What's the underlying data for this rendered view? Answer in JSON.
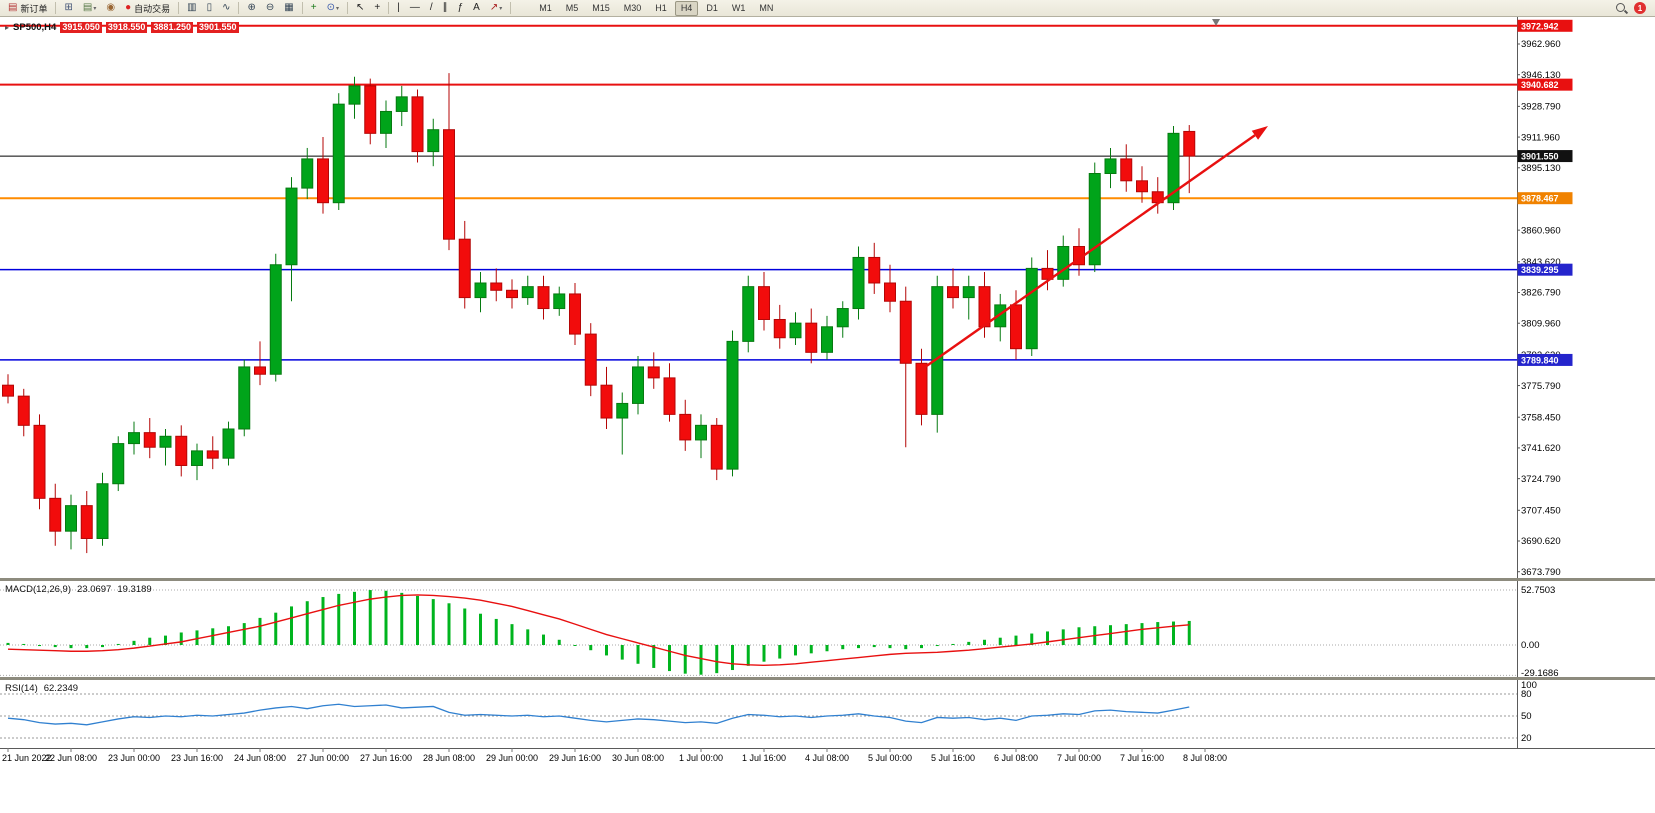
{
  "toolbar": {
    "new_order_label": "新订单",
    "new_order_icon_glyph": "▤",
    "autotrading_label": "自动交易",
    "autotrading_icon_glyph": "●",
    "notification_count": "1",
    "timeframes": [
      "M1",
      "M5",
      "M15",
      "M30",
      "H1",
      "H4",
      "D1",
      "W1",
      "MN"
    ],
    "active_timeframe": "H4",
    "icon_groups_a": [
      [
        {
          "name": "new-chart",
          "glyph": "⊞",
          "color": "#445577"
        },
        {
          "name": "profiles",
          "glyph": "▤",
          "color": "#557744",
          "dropdown": true
        },
        {
          "name": "alerts",
          "glyph": "◉",
          "color": "#996633"
        }
      ]
    ],
    "icon_groups_b": [
      [
        {
          "name": "bar-chart",
          "glyph": "▥",
          "color": "#334455"
        },
        {
          "name": "candle-chart",
          "glyph": "▯",
          "color": "#334455"
        },
        {
          "name": "line-chart",
          "glyph": "∿",
          "color": "#334455"
        }
      ],
      [
        {
          "name": "zoom-in",
          "glyph": "⊕",
          "color": "#334455"
        },
        {
          "name": "zoom-out",
          "glyph": "⊖",
          "color": "#334455"
        },
        {
          "name": "tile-windows",
          "glyph": "▦",
          "color": "#334455"
        }
      ],
      [
        {
          "name": "add-indicator",
          "glyph": "+",
          "color": "#1a7a1a"
        },
        {
          "name": "period-selector",
          "glyph": "⊙",
          "color": "#3355aa",
          "dropdown": true
        }
      ],
      [
        {
          "name": "cursor",
          "glyph": "↖",
          "color": "#222222"
        },
        {
          "name": "crosshair",
          "glyph": "+",
          "color": "#222222"
        }
      ],
      [
        {
          "name": "vertical-line",
          "glyph": "|",
          "color": "#222222"
        },
        {
          "name": "horizontal-line",
          "glyph": "—",
          "color": "#222222"
        },
        {
          "name": "trendline",
          "glyph": "/",
          "color": "#222222"
        },
        {
          "name": "channel",
          "glyph": "∥",
          "color": "#222222"
        },
        {
          "name": "fibonacci",
          "glyph": "ƒ",
          "color": "#222222"
        },
        {
          "name": "text-tool",
          "glyph": "A",
          "color": "#222222"
        },
        {
          "name": "arrows-tool",
          "glyph": "↗",
          "color": "#aa2222",
          "dropdown": true
        }
      ]
    ]
  },
  "chart": {
    "symbol_marker_glyph": "▸",
    "symbol_period": "SP500,H4",
    "open": "3915.050",
    "high": "3918.550",
    "low": "3881.250",
    "close": "3901.550",
    "shift_marker_index": 76.7,
    "hlines": [
      {
        "price": 3972.942,
        "label": "3972.942",
        "color": "#e81010",
        "badge": "#e81010",
        "width": 2
      },
      {
        "price": 3940.682,
        "label": "3940.682",
        "color": "#e81010",
        "badge": "#e81010",
        "width": 2
      },
      {
        "price": 3901.55,
        "label": "3901.550",
        "color": "#000000",
        "badge": "#111111",
        "width": 1
      },
      {
        "price": 3878.467,
        "label": "3878.467",
        "color": "#ff8c00",
        "badge": "#f08200",
        "width": 2
      },
      {
        "price": 3839.295,
        "label": "3839.295",
        "color": "#0000dd",
        "badge": "#2424cc",
        "width": 1.5
      },
      {
        "price": 3789.84,
        "label": "3789.840",
        "color": "#0000dd",
        "badge": "#2424cc",
        "width": 1.5
      }
    ],
    "trend_arrow": {
      "color": "#e81010",
      "from": {
        "index": 57.9,
        "price": 3784
      },
      "to": {
        "index": 80,
        "price": 3918
      }
    },
    "price_axis_labels": [
      "3962.960",
      "3946.130",
      "3928.790",
      "3911.960",
      "3895.130",
      "3860.960",
      "3843.620",
      "3826.790",
      "3809.960",
      "3792.620",
      "3775.790",
      "3758.450",
      "3741.620",
      "3724.790",
      "3707.450",
      "3690.620",
      "3673.790"
    ]
  },
  "macd": {
    "name": "MACD(12,26,9)",
    "value_main": "23.0697",
    "value_signal": "19.3189",
    "axis_labels": [
      "52.7503",
      "0.00",
      "-29.1686"
    ]
  },
  "rsi": {
    "name": "RSI(14)",
    "value": "62.2349",
    "axis_labels": [
      "100",
      "80",
      "50",
      "20"
    ]
  },
  "chart_data": {
    "type": "candlestick",
    "symbol": "SP500",
    "timeframe": "H4",
    "last_ohlc": {
      "open": 3915.05,
      "high": 3918.55,
      "low": 3881.25,
      "close": 3901.55
    },
    "colors": {
      "up": "#00a41a",
      "up_border": "#067a10",
      "down": "#f20c0c",
      "down_border": "#b40606",
      "macd_bar": "#00b41e",
      "macd_signal": "#e81010",
      "rsi_line": "#3080d0"
    },
    "horizontal_levels": [
      3972.942,
      3940.682,
      3901.55,
      3878.467,
      3839.295,
      3789.84
    ],
    "x_labels": [
      "21 Jun 2022",
      "22 Jun 08:00",
      "23 Jun 00:00",
      "23 Jun 16:00",
      "24 Jun 08:00",
      "27 Jun 00:00",
      "27 Jun 16:00",
      "28 Jun 08:00",
      "29 Jun 00:00",
      "29 Jun 16:00",
      "30 Jun 08:00",
      "1 Jul 00:00",
      "1 Jul 16:00",
      "4 Jul 08:00",
      "5 Jul 00:00",
      "5 Jul 16:00",
      "6 Jul 08:00",
      "7 Jul 00:00",
      "7 Jul 16:00",
      "8 Jul 08:00"
    ],
    "candles_ohlc": [
      [
        3776,
        3782,
        3766,
        3770
      ],
      [
        3770,
        3774,
        3748,
        3754
      ],
      [
        3754,
        3760,
        3708,
        3714
      ],
      [
        3714,
        3722,
        3688,
        3696
      ],
      [
        3696,
        3716,
        3686,
        3710
      ],
      [
        3710,
        3718,
        3684,
        3692
      ],
      [
        3692,
        3728,
        3688,
        3722
      ],
      [
        3722,
        3748,
        3718,
        3744
      ],
      [
        3744,
        3756,
        3738,
        3750
      ],
      [
        3750,
        3758,
        3736,
        3742
      ],
      [
        3742,
        3752,
        3732,
        3748
      ],
      [
        3748,
        3754,
        3726,
        3732
      ],
      [
        3732,
        3744,
        3724,
        3740
      ],
      [
        3740,
        3748,
        3730,
        3736
      ],
      [
        3736,
        3756,
        3732,
        3752
      ],
      [
        3752,
        3790,
        3748,
        3786
      ],
      [
        3786,
        3800,
        3776,
        3782
      ],
      [
        3782,
        3848,
        3778,
        3842
      ],
      [
        3842,
        3890,
        3822,
        3884
      ],
      [
        3884,
        3906,
        3878,
        3900
      ],
      [
        3900,
        3912,
        3870,
        3876
      ],
      [
        3876,
        3936,
        3872,
        3930
      ],
      [
        3930,
        3945,
        3922,
        3940
      ],
      [
        3940,
        3944,
        3908,
        3914
      ],
      [
        3914,
        3932,
        3906,
        3926
      ],
      [
        3926,
        3940,
        3918,
        3934
      ],
      [
        3934,
        3938,
        3898,
        3904
      ],
      [
        3904,
        3922,
        3896,
        3916
      ],
      [
        3916,
        3947,
        3850,
        3856
      ],
      [
        3856,
        3866,
        3818,
        3824
      ],
      [
        3824,
        3838,
        3816,
        3832
      ],
      [
        3832,
        3840,
        3822,
        3828
      ],
      [
        3828,
        3834,
        3818,
        3824
      ],
      [
        3824,
        3836,
        3820,
        3830
      ],
      [
        3830,
        3836,
        3812,
        3818
      ],
      [
        3818,
        3830,
        3814,
        3826
      ],
      [
        3826,
        3832,
        3798,
        3804
      ],
      [
        3804,
        3810,
        3770,
        3776
      ],
      [
        3776,
        3786,
        3752,
        3758
      ],
      [
        3758,
        3772,
        3738,
        3766
      ],
      [
        3766,
        3792,
        3760,
        3786
      ],
      [
        3786,
        3794,
        3774,
        3780
      ],
      [
        3780,
        3788,
        3756,
        3760
      ],
      [
        3760,
        3768,
        3740,
        3746
      ],
      [
        3746,
        3760,
        3736,
        3754
      ],
      [
        3754,
        3758,
        3724,
        3730
      ],
      [
        3730,
        3806,
        3726,
        3800
      ],
      [
        3800,
        3836,
        3794,
        3830
      ],
      [
        3830,
        3838,
        3806,
        3812
      ],
      [
        3812,
        3820,
        3796,
        3802
      ],
      [
        3802,
        3816,
        3798,
        3810
      ],
      [
        3810,
        3818,
        3788,
        3794
      ],
      [
        3794,
        3814,
        3790,
        3808
      ],
      [
        3808,
        3822,
        3802,
        3818
      ],
      [
        3818,
        3852,
        3812,
        3846
      ],
      [
        3846,
        3854,
        3826,
        3832
      ],
      [
        3832,
        3842,
        3816,
        3822
      ],
      [
        3822,
        3830,
        3742,
        3788
      ],
      [
        3788,
        3796,
        3754,
        3760
      ],
      [
        3760,
        3836,
        3750,
        3830
      ],
      [
        3830,
        3840,
        3818,
        3824
      ],
      [
        3824,
        3836,
        3812,
        3830
      ],
      [
        3830,
        3838,
        3802,
        3808
      ],
      [
        3808,
        3826,
        3800,
        3820
      ],
      [
        3820,
        3828,
        3790,
        3796
      ],
      [
        3796,
        3846,
        3792,
        3840
      ],
      [
        3840,
        3850,
        3828,
        3834
      ],
      [
        3834,
        3858,
        3830,
        3852
      ],
      [
        3852,
        3862,
        3836,
        3842
      ],
      [
        3842,
        3898,
        3838,
        3892
      ],
      [
        3892,
        3906,
        3884,
        3900
      ],
      [
        3900,
        3908,
        3882,
        3888
      ],
      [
        3888,
        3896,
        3876,
        3882
      ],
      [
        3882,
        3890,
        3870,
        3876
      ],
      [
        3876,
        3918,
        3872,
        3914
      ],
      [
        3915.05,
        3918.55,
        3881.25,
        3901.55
      ]
    ],
    "indicators": {
      "macd": {
        "name": "MACD(12,26,9)",
        "current": [
          23.0697,
          19.3189
        ],
        "grid_levels": [
          52.7503,
          0,
          -29.1686
        ],
        "histogram": [
          2,
          1,
          -1,
          -2,
          -3,
          -3,
          -2,
          1,
          4,
          7,
          9,
          12,
          14,
          16,
          18,
          21,
          26,
          31,
          37,
          42,
          46,
          49,
          51,
          52.7,
          52,
          50,
          47,
          44,
          40,
          35,
          30,
          25,
          20,
          15,
          10,
          5,
          0,
          -5,
          -10,
          -14,
          -18,
          -22,
          -25,
          -27.5,
          -28.5,
          -27,
          -24,
          -20,
          -16,
          -13,
          -10,
          -8,
          -6,
          -4,
          -3,
          -2,
          -3,
          -4,
          -3,
          -1,
          1,
          3,
          5,
          7,
          9,
          11,
          13,
          15,
          17,
          18,
          19,
          20,
          21,
          22,
          22.5,
          23.0697
        ],
        "signal": [
          -4,
          -4.5,
          -5,
          -5.5,
          -6,
          -6,
          -5.5,
          -4.5,
          -3,
          -1,
          1,
          3,
          6,
          9,
          12,
          15,
          18,
          22,
          26,
          30,
          34,
          38,
          41,
          44,
          46,
          47.5,
          48,
          47.5,
          46.5,
          45,
          43,
          40,
          37,
          33,
          29,
          25,
          20,
          15,
          10,
          6,
          2,
          -2,
          -6,
          -10,
          -13,
          -16,
          -18,
          -19,
          -19.5,
          -19,
          -18,
          -16.5,
          -15,
          -13.5,
          -12,
          -10.5,
          -9,
          -8,
          -7.5,
          -7,
          -6,
          -5,
          -3.5,
          -2,
          -0.5,
          1,
          3,
          5,
          7,
          9,
          11,
          13,
          15,
          16.5,
          18,
          19.3189
        ]
      },
      "rsi": {
        "name": "RSI(14)",
        "current": 62.2349,
        "levels": [
          80,
          50,
          20
        ],
        "values": [
          47,
          45,
          41,
          39,
          40,
          38,
          42,
          46,
          49,
          48,
          50,
          49,
          51,
          50,
          52,
          54,
          58,
          61,
          63,
          60,
          64,
          66,
          63,
          64,
          65,
          61,
          62,
          63,
          55,
          51,
          52,
          51,
          50,
          51,
          49,
          50,
          47,
          44,
          42,
          44,
          46,
          45,
          43,
          41,
          42,
          40,
          47,
          52,
          51,
          49,
          50,
          48,
          50,
          51,
          53,
          50,
          48,
          43,
          41,
          48,
          47,
          48,
          45,
          47,
          44,
          50,
          51,
          53,
          52,
          57,
          58,
          56,
          55,
          54,
          58,
          62.2349
        ]
      }
    }
  }
}
